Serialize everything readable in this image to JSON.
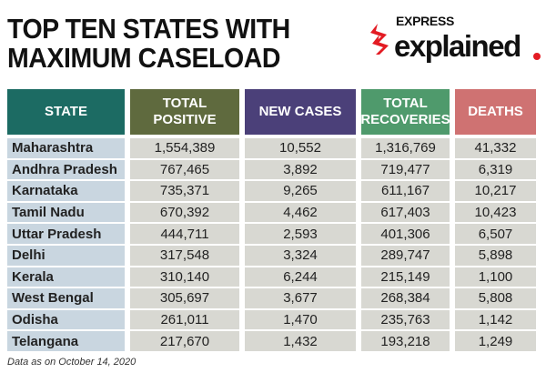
{
  "title": {
    "line1": "TOP TEN STATES WITH",
    "line2": "MAXIMUM CASELOAD"
  },
  "logo": {
    "express": "EXPRESS",
    "explained": "explained",
    "accent": "#e31b23"
  },
  "headers": [
    {
      "label": "STATE",
      "color": "#1c6b63"
    },
    {
      "label": "TOTAL POSITIVE",
      "color": "#5f6a3e"
    },
    {
      "label": "NEW CASES",
      "color": "#4b4079"
    },
    {
      "label": "TOTAL RECOVERIES",
      "color": "#4f9a6c"
    },
    {
      "label": "DEATHS",
      "color": "#cf7272"
    }
  ],
  "rows": [
    [
      "Maharashtra",
      "1,554,389",
      "10,552",
      "1,316,769",
      "41,332"
    ],
    [
      "Andhra Pradesh",
      "767,465",
      "3,892",
      "719,477",
      "6,319"
    ],
    [
      "Karnataka",
      "735,371",
      "9,265",
      "611,167",
      "10,217"
    ],
    [
      "Tamil Nadu",
      "670,392",
      "4,462",
      "617,403",
      "10,423"
    ],
    [
      "Uttar Pradesh",
      "444,711",
      "2,593",
      "401,306",
      "6,507"
    ],
    [
      "Delhi",
      "317,548",
      "3,324",
      "289,747",
      "5,898"
    ],
    [
      "Kerala",
      "310,140",
      "6,244",
      "215,149",
      "1,100"
    ],
    [
      "West Bengal",
      "305,697",
      "3,677",
      "268,384",
      "5,808"
    ],
    [
      "Odisha",
      "261,011",
      "1,470",
      "235,763",
      "1,142"
    ],
    [
      "Telangana",
      "217,670",
      "1,432",
      "193,218",
      "1,249"
    ]
  ],
  "note": "Data as on October 14, 2020"
}
